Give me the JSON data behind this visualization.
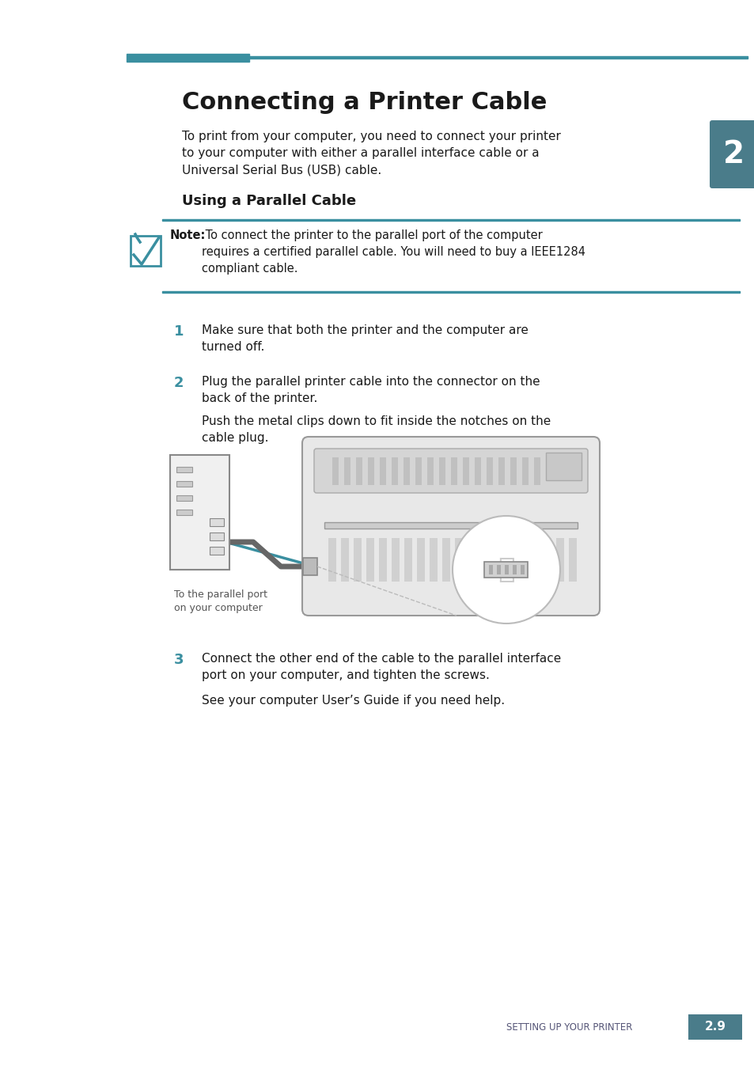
{
  "bg_color": "#ffffff",
  "teal_color": "#3a8fa0",
  "dark_teal": "#4a7c8a",
  "text_color": "#1a1a1a",
  "gray_text": "#555555",
  "title": "Connecting a Printer Cable",
  "subtitle_section": "Using a Parallel Cable",
  "note_bold": "Note:",
  "note_text": " To connect the printer to the parallel port of the computer\nrequires a certified parallel cable. You will need to buy a IEEE1284\ncompliant cable.",
  "intro_text": "To print from your computer, you need to connect your printer\nto your computer with either a parallel interface cable or a\nUniversal Serial Bus (USB) cable.",
  "step1_num": "1",
  "step1_text": "Make sure that both the printer and the computer are\nturned off.",
  "step2_num": "2",
  "step2_text": "Plug the parallel printer cable into the connector on the\nback of the printer.",
  "step2b_text": "Push the metal clips down to fit inside the notches on the\ncable plug.",
  "step3_num": "3",
  "step3_text": "Connect the other end of the cable to the parallel interface\nport on your computer, and tighten the screws.",
  "step3b_text": "See your computer User’s Guide if you need help.",
  "caption": "To the parallel port\non your computer",
  "footer_text": "SETTING UP YOUR PRINTER",
  "page_num": "2.9",
  "chapter_num": "2"
}
